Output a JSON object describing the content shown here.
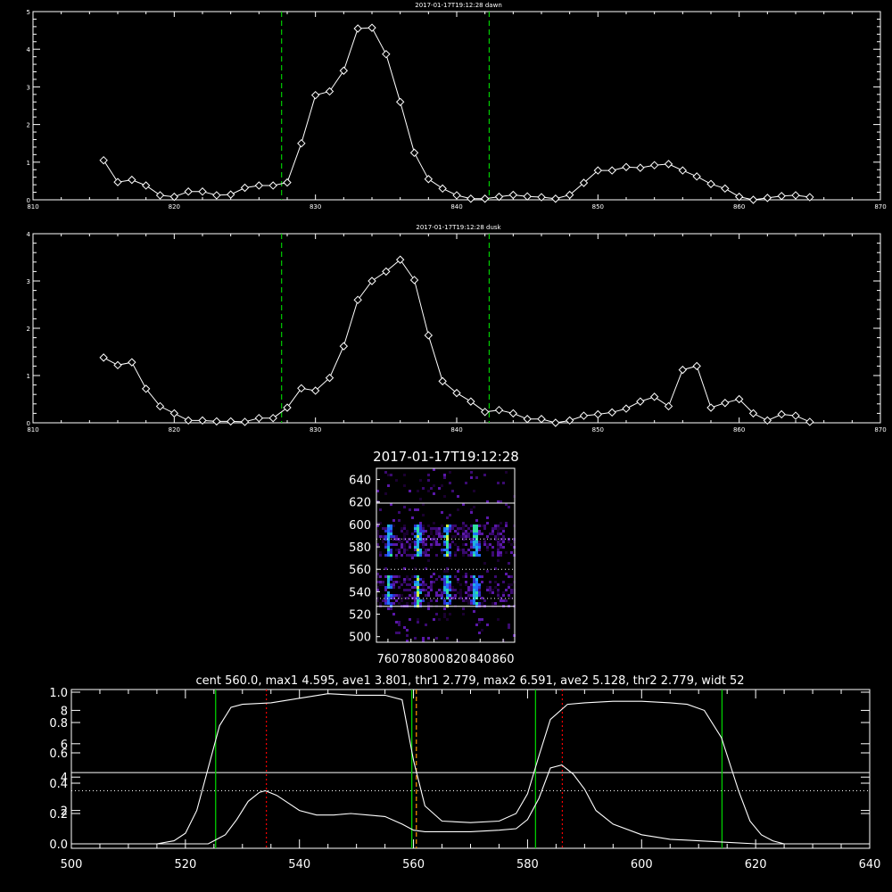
{
  "colors": {
    "background": "#000000",
    "axes": "#ffffff",
    "data_line": "#ffffff",
    "green": "#00cc00",
    "red": "#ff0000",
    "orange": "#ff9900"
  },
  "chart_data": [
    {
      "type": "line",
      "title": "2017-01-17T19:12:28 dawn",
      "xlim": [
        810,
        870
      ],
      "ylim": [
        0,
        5
      ],
      "x_ticks": [
        "810",
        "820",
        "830",
        "840",
        "850",
        "860",
        "870"
      ],
      "y_ticks": [
        "0",
        "1",
        "2",
        "3",
        "4",
        "5"
      ],
      "markers": "diamond",
      "vlines": [
        827.6,
        842.3
      ],
      "x": [
        815,
        816,
        817,
        818,
        819,
        820,
        821,
        822,
        823,
        824,
        825,
        826,
        827,
        828,
        829,
        830,
        831,
        832,
        833,
        834,
        835,
        836,
        837,
        838,
        839,
        840,
        841,
        842,
        843,
        844,
        845,
        846,
        847,
        848,
        849,
        850,
        851,
        852,
        853,
        854,
        855,
        856,
        857,
        858,
        859,
        860,
        861,
        862,
        863,
        864,
        865
      ],
      "y": [
        1.05,
        0.47,
        0.53,
        0.38,
        0.12,
        0.08,
        0.22,
        0.22,
        0.12,
        0.14,
        0.32,
        0.38,
        0.38,
        0.46,
        1.5,
        2.78,
        2.88,
        3.43,
        4.55,
        4.57,
        3.87,
        2.6,
        1.25,
        0.55,
        0.3,
        0.12,
        0.03,
        0.03,
        0.08,
        0.13,
        0.09,
        0.07,
        0.03,
        0.13,
        0.45,
        0.78,
        0.78,
        0.87,
        0.85,
        0.92,
        0.95,
        0.78,
        0.62,
        0.42,
        0.3,
        0.08,
        0.0,
        0.05,
        0.1,
        0.12,
        0.07
      ]
    },
    {
      "type": "line",
      "title": "2017-01-17T19:12:28 dusk",
      "xlim": [
        810,
        870
      ],
      "ylim": [
        0,
        4
      ],
      "x_ticks": [
        "810",
        "820",
        "830",
        "840",
        "850",
        "860",
        "870"
      ],
      "y_ticks": [
        "0",
        "1",
        "2",
        "3",
        "4"
      ],
      "markers": "diamond",
      "vlines": [
        827.6,
        842.3
      ],
      "x": [
        815,
        816,
        817,
        818,
        819,
        820,
        821,
        822,
        823,
        824,
        825,
        826,
        827,
        828,
        829,
        830,
        831,
        832,
        833,
        834,
        835,
        836,
        837,
        838,
        839,
        840,
        841,
        842,
        843,
        844,
        845,
        846,
        847,
        848,
        849,
        850,
        851,
        852,
        853,
        854,
        855,
        856,
        857,
        858,
        859,
        860,
        861,
        862,
        863,
        864,
        865
      ],
      "y": [
        1.38,
        1.22,
        1.28,
        0.72,
        0.35,
        0.2,
        0.05,
        0.05,
        0.03,
        0.03,
        0.02,
        0.1,
        0.1,
        0.32,
        0.73,
        0.68,
        0.95,
        1.62,
        2.6,
        3.0,
        3.2,
        3.45,
        3.02,
        1.85,
        0.88,
        0.63,
        0.45,
        0.23,
        0.27,
        0.2,
        0.08,
        0.08,
        0.0,
        0.05,
        0.15,
        0.18,
        0.22,
        0.3,
        0.45,
        0.55,
        0.35,
        1.12,
        1.2,
        0.32,
        0.42,
        0.5,
        0.2,
        0.05,
        0.18,
        0.15,
        0.02
      ]
    },
    {
      "type": "heatmap",
      "title": "2017-01-17T19:12:28",
      "xlim": [
        750,
        870
      ],
      "ylim": [
        495,
        650
      ],
      "x_ticks": [
        "760",
        "780",
        "800",
        "820",
        "840",
        "860"
      ],
      "y_ticks": [
        "500",
        "520",
        "540",
        "560",
        "580",
        "600",
        "620",
        "640"
      ],
      "hlines_solid": [
        619,
        527
      ],
      "hlines_dotted": [
        587,
        560,
        534
      ],
      "bright_columns": [
        760,
        785,
        810,
        835
      ]
    },
    {
      "type": "line",
      "title": "cent 560.0, max1 4.595, ave1 3.801, thr1 2.779, max2 6.591, ave2 5.128, thr2 2.779, widt 52",
      "xlim": [
        500,
        640
      ],
      "x_ticks": [
        "500",
        "520",
        "540",
        "560",
        "580",
        "600",
        "620",
        "640"
      ],
      "left_axis_ticks": [
        "0.0",
        "0.2",
        "0.4",
        "0.6",
        "0.8",
        "1.0"
      ],
      "left_axis_ticks_2": [
        "2",
        "4",
        "6",
        "8"
      ],
      "green_vlines": [
        525.3,
        559.7,
        581.4,
        614.1
      ],
      "red_dotted_vlines": [
        534.2,
        586.1
      ],
      "orange_dashed_vline": [
        560.5
      ],
      "hline_solid_fraction": 0.47,
      "hline_dotted_fraction": 0.35,
      "series": [
        {
          "x": [
            500,
            515,
            518,
            520,
            522,
            524,
            526,
            528,
            530,
            535,
            540,
            545,
            550,
            555,
            558,
            560,
            562,
            565,
            570,
            575,
            578,
            580,
            582,
            584,
            587,
            590,
            595,
            600,
            605,
            608,
            611,
            614,
            617,
            619,
            621,
            623,
            625,
            640
          ],
          "y": [
            0.0,
            0.0,
            0.02,
            0.07,
            0.22,
            0.5,
            0.78,
            0.9,
            0.92,
            0.93,
            0.96,
            0.99,
            0.98,
            0.98,
            0.95,
            0.55,
            0.25,
            0.15,
            0.14,
            0.15,
            0.2,
            0.33,
            0.58,
            0.82,
            0.92,
            0.93,
            0.94,
            0.94,
            0.93,
            0.92,
            0.88,
            0.7,
            0.35,
            0.15,
            0.06,
            0.02,
            0.0,
            0.0
          ]
        },
        {
          "x": [
            500,
            524,
            525,
            527,
            529,
            531,
            533,
            534,
            536,
            538,
            540,
            543,
            546,
            549,
            552,
            555,
            558,
            560,
            562,
            565,
            570,
            575,
            578,
            580,
            582,
            584,
            586,
            588,
            590,
            592,
            595,
            600,
            605,
            610,
            615,
            620,
            625,
            640
          ],
          "y": [
            0.0,
            0.0,
            0.02,
            0.06,
            0.16,
            0.28,
            0.34,
            0.35,
            0.32,
            0.27,
            0.22,
            0.19,
            0.19,
            0.2,
            0.19,
            0.18,
            0.13,
            0.09,
            0.08,
            0.08,
            0.08,
            0.09,
            0.1,
            0.16,
            0.3,
            0.5,
            0.52,
            0.46,
            0.36,
            0.22,
            0.13,
            0.06,
            0.03,
            0.02,
            0.01,
            0.0,
            0.0,
            0.0
          ]
        }
      ]
    }
  ]
}
